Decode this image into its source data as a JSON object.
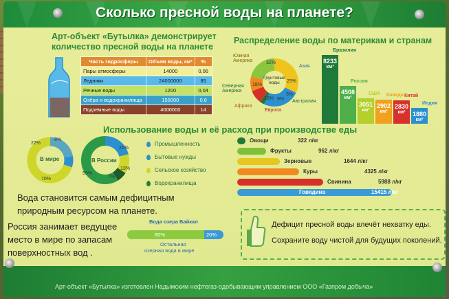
{
  "title": "Сколько пресной воды на планете?",
  "bottle_section": {
    "heading_line1": "Арт-объект «Бутылка» демонстрирует",
    "heading_line2": "количество пресной воды на планете",
    "table_headers": [
      "Часть гидросферы",
      "Объем воды, км³",
      "%"
    ],
    "rows": [
      {
        "name": "Пары атмосферы",
        "volume": "14000",
        "pct": "0,06",
        "color": "#f2ef9a"
      },
      {
        "name": "Ледники",
        "volume": "24000000",
        "pct": "85",
        "color": "#59b9e8"
      },
      {
        "name": "Речные воды",
        "volume": "1200",
        "pct": "0,04",
        "color": "#c5e266"
      },
      {
        "name": "Озёра и водохранилища",
        "volume": "155000",
        "pct": "0,6",
        "color": "#39a0c9"
      },
      {
        "name": "Подземные воды",
        "volume": "4000000",
        "pct": "14",
        "color": "#8a4328"
      }
    ]
  },
  "distribution": {
    "heading": "Распределение воды по материкам и странам",
    "pie_center": "Грунтовые воды",
    "pie_labels": {
      "south_america": "Южная Америка",
      "asia": "Азия",
      "north_america": "Северная Америка",
      "africa": "Африка",
      "europe": "Европа",
      "australia": "Австралия",
      "p32": "32%",
      "p25": "25%",
      "p18": "18%",
      "p10": "10%",
      "p9": "9%",
      "p3": "3%"
    },
    "countries": [
      {
        "name": "Бразилия",
        "value": "8233",
        "color": "#1f7a3a"
      },
      {
        "name": "Россия",
        "value": "4508",
        "color": "#4fb04a"
      },
      {
        "name": "США",
        "value": "3051",
        "color": "#b5cf2c"
      },
      {
        "name": "Канада",
        "value": "2902",
        "color": "#f0a21e"
      },
      {
        "name": "Китай",
        "value": "2830",
        "color": "#d8312b"
      },
      {
        "name": "Индия",
        "value": "1880",
        "color": "#2b8fd0"
      }
    ],
    "unit": "км³"
  },
  "usage": {
    "heading": "Использование воды и её расход при производстве еды",
    "world_label": "В мире",
    "world_pcts": {
      "p22": "22%",
      "p8": "8%",
      "p70": "70%"
    },
    "russia_label": "В России",
    "russia_pcts": {
      "p21": "21%",
      "p13": "13%",
      "p7": "7%",
      "p59": "59%"
    },
    "legend": [
      {
        "label": "Промышленность",
        "color": "#2c8fd0"
      },
      {
        "label": "Бытовые нужды",
        "color": "#2c8fd0"
      },
      {
        "label": "Сельское хозяйство",
        "color": "#cfd62a"
      },
      {
        "label": "Водохранилища",
        "color": "#2a7a3a"
      }
    ]
  },
  "food": [
    {
      "name": "Овощи",
      "value": "322 л/кг",
      "color": "#1e7a38"
    },
    {
      "name": "Фрукты",
      "value": "962 л/кг",
      "color": "#7fbf3a"
    },
    {
      "name": "Зерновые",
      "value": "1644 л/кг",
      "color": "#e6c71f"
    },
    {
      "name": "Куры",
      "value": "4325 л/кг",
      "color": "#f08a1e"
    },
    {
      "name": "Свинина",
      "value": "5988 л/кг",
      "color": "#d6302a"
    },
    {
      "name": "Говядина",
      "value": "15415 л/кг",
      "color": "#3a9ad6"
    }
  ],
  "left_text": {
    "line1": "Вода становится самым дефицитным",
    "line2": "природным ресурсом на планете.",
    "russia1": "Россия занимает ведущее",
    "russia2": "место в мире по запасам",
    "russia3": "поверхностных вод ."
  },
  "baikal": {
    "top_label": "Вода озера Байкал",
    "pct80": "80%",
    "pct20": "20%",
    "bottom_label1": "Остальная",
    "bottom_label2": "озерная вода в мире"
  },
  "messages": {
    "m1": "Дефицит пресной воды влечёт нехватку еды.",
    "m2": "Сохраните воду чистой для будущих поколений."
  },
  "footer": "Арт-объект «Бутылка» изготовлен Надымским нефтегаз-одобывающим управлением ООО «Газпром добыча»"
}
